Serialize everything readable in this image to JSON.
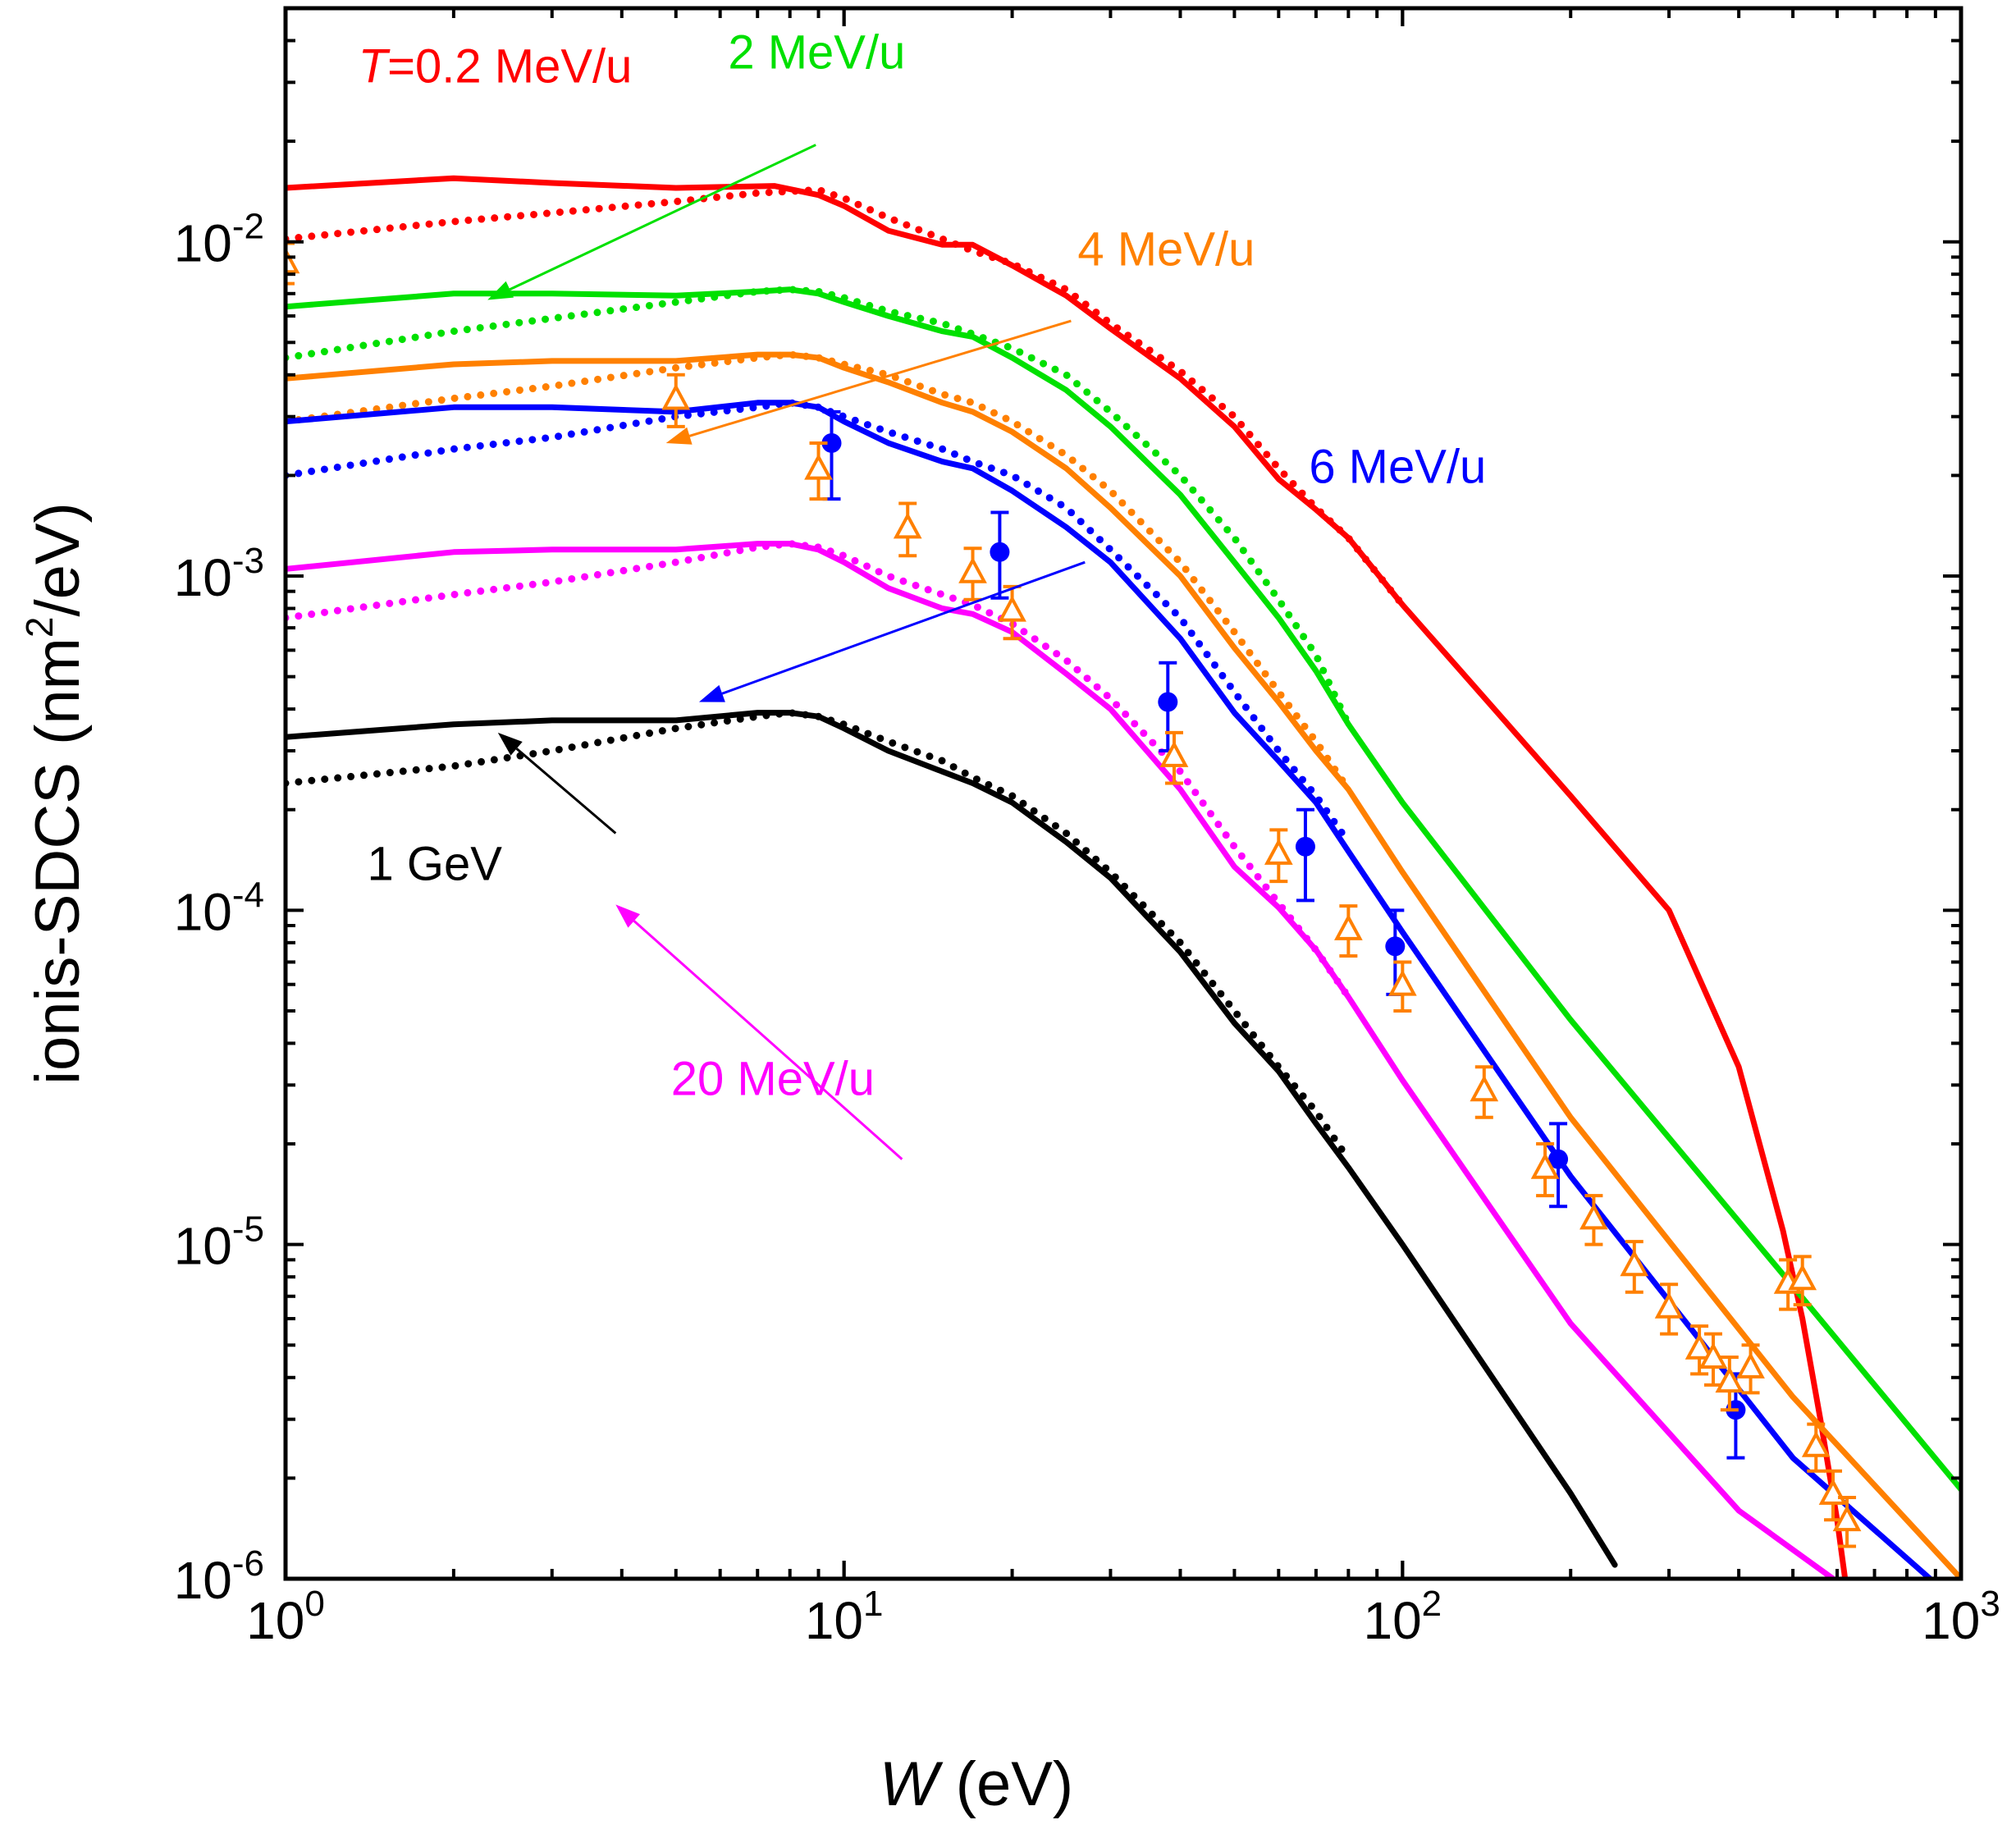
{
  "chart_data": {
    "type": "line",
    "title": "",
    "xlabel": {
      "var": "W",
      "unit": " (eV)"
    },
    "ylabel": {
      "pre": "ionis-SDCS (nm",
      "sup": "2",
      "post": "/eV)"
    },
    "xscale": "log",
    "yscale": "log",
    "xlim": [
      1,
      1000
    ],
    "ylim": [
      1e-06,
      0.05
    ],
    "x_ticks": [
      {
        "value": 1,
        "base": "10",
        "exp": "0"
      },
      {
        "value": 10,
        "base": "10",
        "exp": "1"
      },
      {
        "value": 100,
        "base": "10",
        "exp": "2"
      },
      {
        "value": 1000,
        "base": "10",
        "exp": "3"
      }
    ],
    "y_ticks": [
      {
        "value": 1e-06,
        "base": "10",
        "exp": "-6"
      },
      {
        "value": 1e-05,
        "base": "10",
        "exp": "-5"
      },
      {
        "value": 0.0001,
        "base": "10",
        "exp": "-4"
      },
      {
        "value": 0.001,
        "base": "10",
        "exp": "-3"
      },
      {
        "value": 0.01,
        "base": "10",
        "exp": "-2"
      }
    ],
    "grid": false,
    "legend": "none",
    "series": [
      {
        "name": "T=0.2 MeV/u solid",
        "color": "#ff0000",
        "style": "solid",
        "x": [
          1,
          2,
          3,
          5,
          7.5,
          9,
          10,
          12,
          15,
          17,
          20,
          25,
          30,
          40,
          50,
          60,
          70,
          80,
          100,
          150,
          200,
          300,
          400,
          480,
          520,
          560,
          600,
          620
        ],
        "y": [
          0.0145,
          0.0155,
          0.015,
          0.0145,
          0.0147,
          0.0138,
          0.0128,
          0.0108,
          0.0098,
          0.0098,
          0.0085,
          0.0069,
          0.0055,
          0.0039,
          0.0028,
          0.00195,
          0.00158,
          0.0013,
          0.00082,
          0.00038,
          0.00022,
          0.0001,
          3.4e-05,
          1.1e-05,
          6e-06,
          3e-06,
          1.5e-06,
          1e-06
        ]
      },
      {
        "name": "T=0.2 MeV/u dotted",
        "color": "#ff0000",
        "style": "dotted",
        "x": [
          1,
          2,
          3,
          5,
          7,
          9,
          10,
          12,
          15,
          17,
          20,
          25,
          30,
          40,
          50,
          60,
          70,
          80,
          100
        ],
        "y": [
          0.0102,
          0.0115,
          0.0122,
          0.0132,
          0.014,
          0.0143,
          0.0135,
          0.0118,
          0.0102,
          0.0094,
          0.0086,
          0.0072,
          0.0057,
          0.0041,
          0.003,
          0.0021,
          0.0016,
          0.0013,
          0.00082
        ]
      },
      {
        "name": "2 MeV/u solid",
        "color": "#00e000",
        "style": "solid",
        "x": [
          1,
          2,
          3,
          5,
          7,
          8,
          9,
          10,
          12,
          15,
          17,
          20,
          25,
          30,
          40,
          50,
          60,
          70,
          80,
          100,
          200,
          500,
          1000
        ],
        "y": [
          0.0064,
          0.007,
          0.007,
          0.0069,
          0.0071,
          0.0072,
          0.007,
          0.0066,
          0.006,
          0.0054,
          0.0052,
          0.0045,
          0.0036,
          0.0028,
          0.00175,
          0.0011,
          0.00075,
          0.00052,
          0.00036,
          0.00021,
          4.7e-05,
          7.5e-06,
          1.85e-06
        ]
      },
      {
        "name": "2 MeV/u dotted",
        "color": "#00e000",
        "style": "dotted",
        "x": [
          1,
          2,
          3,
          5,
          7,
          8,
          9,
          10,
          12,
          15,
          17,
          20,
          25,
          30,
          40,
          50,
          60,
          70,
          80
        ],
        "y": [
          0.0045,
          0.0054,
          0.0059,
          0.0066,
          0.0071,
          0.0072,
          0.0071,
          0.0068,
          0.0062,
          0.0057,
          0.0053,
          0.0048,
          0.004,
          0.0031,
          0.002,
          0.0013,
          0.00085,
          0.00058,
          0.00036
        ]
      },
      {
        "name": "4 MeV/u solid",
        "color": "#ff8000",
        "style": "solid",
        "x": [
          1,
          2,
          3,
          5,
          7,
          8,
          9,
          10,
          12,
          15,
          17,
          20,
          25,
          30,
          40,
          50,
          60,
          70,
          80,
          100,
          200,
          500,
          1000
        ],
        "y": [
          0.0039,
          0.0043,
          0.0044,
          0.0044,
          0.0046,
          0.0046,
          0.0045,
          0.0042,
          0.0038,
          0.0033,
          0.0031,
          0.0027,
          0.0021,
          0.0016,
          0.001,
          0.00061,
          0.00042,
          0.0003,
          0.00023,
          0.00013,
          2.4e-05,
          3.5e-06,
          1e-06
        ]
      },
      {
        "name": "4 MeV/u dotted",
        "color": "#ff8000",
        "style": "dotted",
        "x": [
          1,
          2,
          3,
          5,
          7,
          8,
          9,
          10,
          12,
          15,
          17,
          20,
          25,
          30,
          40,
          50,
          60,
          70,
          80
        ],
        "y": [
          0.0029,
          0.0034,
          0.0037,
          0.0042,
          0.0045,
          0.0046,
          0.0045,
          0.0043,
          0.004,
          0.0035,
          0.0033,
          0.0029,
          0.0023,
          0.0018,
          0.0011,
          0.00068,
          0.00045,
          0.00032,
          0.00023
        ]
      },
      {
        "name": "6 MeV/u solid",
        "color": "#0000ff",
        "style": "solid",
        "x": [
          1,
          2,
          3,
          5,
          7,
          8,
          9,
          10,
          12,
          15,
          17,
          20,
          25,
          30,
          40,
          50,
          60,
          70,
          80,
          100,
          200,
          500,
          880
        ],
        "y": [
          0.0029,
          0.0032,
          0.0032,
          0.0031,
          0.0033,
          0.0033,
          0.0032,
          0.0029,
          0.0025,
          0.0022,
          0.0021,
          0.0018,
          0.0014,
          0.0011,
          0.00065,
          0.00039,
          0.00028,
          0.00021,
          0.00015,
          8.6e-05,
          1.6e-05,
          2.3e-06,
          1e-06
        ]
      },
      {
        "name": "6 MeV/u dotted",
        "color": "#0000ff",
        "style": "dotted",
        "x": [
          1,
          2,
          3,
          5,
          7,
          8,
          9,
          10,
          12,
          15,
          17,
          20,
          25,
          30,
          40,
          50,
          60,
          70,
          80
        ],
        "y": [
          0.002,
          0.0024,
          0.0026,
          0.003,
          0.0032,
          0.0033,
          0.0032,
          0.003,
          0.0027,
          0.0024,
          0.0022,
          0.002,
          0.0016,
          0.0012,
          0.00075,
          0.00045,
          0.0003,
          0.00022,
          0.00016
        ]
      },
      {
        "name": "20 MeV/u solid",
        "color": "#ff00ff",
        "style": "solid",
        "x": [
          1,
          2,
          3,
          5,
          7,
          8,
          9,
          10,
          12,
          15,
          17,
          20,
          25,
          30,
          40,
          50,
          60,
          70,
          80,
          100,
          200,
          400,
          590
        ],
        "y": [
          0.00105,
          0.00118,
          0.0012,
          0.0012,
          0.00125,
          0.00125,
          0.0012,
          0.0011,
          0.00092,
          0.0008,
          0.00077,
          0.00068,
          0.00051,
          0.0004,
          0.00023,
          0.000135,
          0.000102,
          7.6e-05,
          5.5e-05,
          3.1e-05,
          5.8e-06,
          1.6e-06,
          1e-06
        ]
      },
      {
        "name": "20 MeV/u dotted",
        "color": "#ff00ff",
        "style": "dotted",
        "x": [
          1,
          2,
          3,
          5,
          7,
          8,
          9,
          10,
          12,
          15,
          17,
          20,
          25,
          30,
          40,
          50,
          60,
          70,
          80
        ],
        "y": [
          0.00075,
          0.00088,
          0.00096,
          0.0011,
          0.00122,
          0.00125,
          0.00122,
          0.00115,
          0.001,
          0.00088,
          0.00082,
          0.00072,
          0.00056,
          0.00043,
          0.00026,
          0.000155,
          0.000105,
          7.6e-05,
          5.5e-05
        ]
      },
      {
        "name": "1 GeV solid",
        "color": "#000000",
        "style": "solid",
        "x": [
          1,
          2,
          3,
          5,
          7,
          8,
          9,
          10,
          12,
          15,
          17,
          20,
          25,
          30,
          40,
          50,
          60,
          70,
          80,
          100,
          200,
          240
        ],
        "y": [
          0.00033,
          0.00036,
          0.00037,
          0.00037,
          0.00039,
          0.00039,
          0.00038,
          0.00035,
          0.0003,
          0.00026,
          0.00024,
          0.00021,
          0.00016,
          0.000125,
          7.5e-05,
          4.6e-05,
          3.3e-05,
          2.3e-05,
          1.7e-05,
          1e-05,
          1.8e-06,
          1.1e-06
        ]
      },
      {
        "name": "1 GeV dotted",
        "color": "#000000",
        "style": "dotted",
        "x": [
          1,
          2,
          3,
          5,
          7,
          8,
          9,
          10,
          12,
          15,
          17,
          20,
          25,
          30,
          40,
          50,
          60,
          70,
          80
        ],
        "y": [
          0.00024,
          0.00027,
          0.0003,
          0.00035,
          0.00038,
          0.00039,
          0.00038,
          0.00036,
          0.00032,
          0.00028,
          0.00025,
          0.00022,
          0.00017,
          0.00013,
          8e-05,
          5e-05,
          3.4e-05,
          2.5e-05,
          1.8e-05
        ]
      }
    ],
    "measured_series": [
      {
        "name": "measured (filled circles)",
        "color": "#0000ff",
        "marker": "filled-circle",
        "points": [
          {
            "x": 9.5,
            "y": 0.0025,
            "ylo": 0.0017,
            "yhi": 0.0031
          },
          {
            "x": 19,
            "y": 0.00118,
            "ylo": 0.00086,
            "yhi": 0.00155
          },
          {
            "x": 38,
            "y": 0.00042,
            "ylo": 0.0003,
            "yhi": 0.00055
          },
          {
            "x": 67,
            "y": 0.000155,
            "ylo": 0.000107,
            "yhi": 0.0002
          },
          {
            "x": 97,
            "y": 7.8e-05,
            "ylo": 5.6e-05,
            "yhi": 0.0001
          },
          {
            "x": 190,
            "y": 1.8e-05,
            "ylo": 1.3e-05,
            "yhi": 2.3e-05
          },
          {
            "x": 395,
            "y": 3.2e-06,
            "ylo": 2.3e-06,
            "yhi": 4.1e-06
          }
        ]
      },
      {
        "name": "measured (open triangles)",
        "color": "#ff8000",
        "marker": "open-triangle",
        "points": [
          {
            "x": 1,
            "y": 0.0087,
            "ylo": 0.0075,
            "yhi": 0.0099
          },
          {
            "x": 5,
            "y": 0.0034,
            "ylo": 0.0028,
            "yhi": 0.004
          },
          {
            "x": 9,
            "y": 0.0021,
            "ylo": 0.0017,
            "yhi": 0.0025
          },
          {
            "x": 13,
            "y": 0.0014,
            "ylo": 0.00115,
            "yhi": 0.00165
          },
          {
            "x": 17,
            "y": 0.00103,
            "ylo": 0.00085,
            "yhi": 0.00121
          },
          {
            "x": 20,
            "y": 0.00079,
            "ylo": 0.00065,
            "yhi": 0.00093
          },
          {
            "x": 39,
            "y": 0.00029,
            "ylo": 0.00024,
            "yhi": 0.00034
          },
          {
            "x": 60,
            "y": 0.000148,
            "ylo": 0.000122,
            "yhi": 0.000174
          },
          {
            "x": 80,
            "y": 8.8e-05,
            "ylo": 7.3e-05,
            "yhi": 0.000103
          },
          {
            "x": 100,
            "y": 6e-05,
            "ylo": 5e-05,
            "yhi": 7e-05
          },
          {
            "x": 140,
            "y": 2.9e-05,
            "ylo": 2.4e-05,
            "yhi": 3.4e-05
          },
          {
            "x": 180,
            "y": 1.7e-05,
            "ylo": 1.4e-05,
            "yhi": 2e-05
          },
          {
            "x": 220,
            "y": 1.2e-05,
            "ylo": 1e-05,
            "yhi": 1.4e-05
          },
          {
            "x": 260,
            "y": 8.7e-06,
            "ylo": 7.2e-06,
            "yhi": 1.02e-05
          },
          {
            "x": 300,
            "y": 6.5e-06,
            "ylo": 5.4e-06,
            "yhi": 7.6e-06
          },
          {
            "x": 340,
            "y": 4.9e-06,
            "ylo": 4.1e-06,
            "yhi": 5.7e-06
          },
          {
            "x": 360,
            "y": 4.6e-06,
            "ylo": 3.8e-06,
            "yhi": 5.4e-06
          },
          {
            "x": 385,
            "y": 3.9e-06,
            "ylo": 3.2e-06,
            "yhi": 4.6e-06
          },
          {
            "x": 420,
            "y": 4.3e-06,
            "ylo": 3.6e-06,
            "yhi": 5e-06
          },
          {
            "x": 490,
            "y": 7.7e-06,
            "ylo": 6.4e-06,
            "yhi": 9e-06
          },
          {
            "x": 520,
            "y": 7.9e-06,
            "ylo": 6.6e-06,
            "yhi": 9.2e-06
          },
          {
            "x": 550,
            "y": 2.5e-06,
            "ylo": 2.1e-06,
            "yhi": 2.9e-06
          },
          {
            "x": 590,
            "y": 1.8e-06,
            "ylo": 1.5e-06,
            "yhi": 2.1e-06
          },
          {
            "x": 625,
            "y": 1.5e-06,
            "ylo": 1.25e-06,
            "yhi": 1.75e-06
          }
        ]
      }
    ],
    "annotations": [
      {
        "id": "t02",
        "text_var": "T",
        "text": "=0.2 MeV/u",
        "color": "#ff0000",
        "x": 1.35,
        "y": 0.03
      },
      {
        "id": "mev2",
        "text": "2 MeV/u",
        "color": "#00e000",
        "x": 6.2,
        "y": 0.033,
        "arrow_from": [
          8.9,
          0.0195
        ],
        "arrow_to": [
          2.3,
          0.0067
        ]
      },
      {
        "id": "mev4",
        "text": "4 MeV/u",
        "color": "#ff8000",
        "x": 26.2,
        "y": 0.0085,
        "arrow_from": [
          25.5,
          0.0058
        ],
        "arrow_to": [
          4.8,
          0.0025
        ]
      },
      {
        "id": "mev6",
        "text": "6 MeV/u",
        "color": "#0000ff",
        "x": 68,
        "y": 0.0019,
        "arrow_from": [
          27,
          0.0011
        ],
        "arrow_to": [
          5.5,
          0.00042
        ]
      },
      {
        "id": "mev20",
        "text": "20 MeV/u",
        "color": "#ff00ff",
        "x": 4.9,
        "y": 2.8e-05,
        "arrow_from": [
          12.7,
          1.8e-05
        ],
        "arrow_to": [
          3.9,
          0.000104
        ]
      },
      {
        "id": "gev1",
        "text": "1 GeV",
        "color": "#000000",
        "x": 1.4,
        "y": 0.000123,
        "arrow_from": [
          3.9,
          0.00017
        ],
        "arrow_to": [
          2.4,
          0.00034
        ]
      }
    ]
  }
}
